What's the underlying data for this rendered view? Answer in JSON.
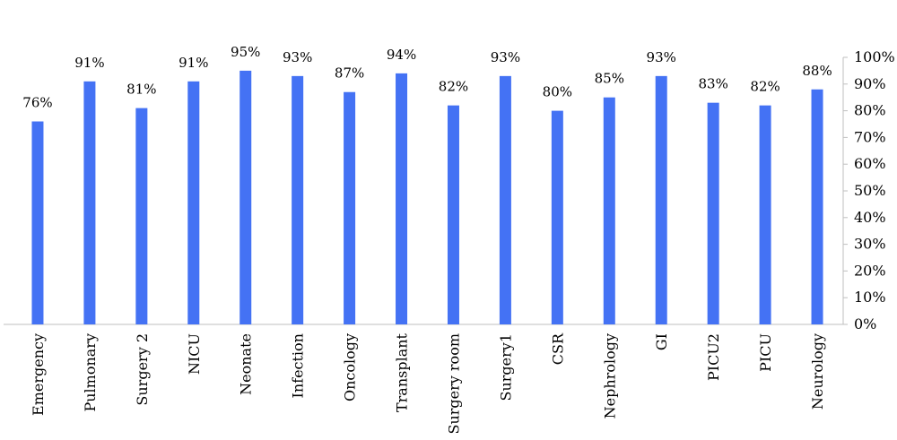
{
  "chart_data": {
    "type": "bar",
    "categories": [
      "Emergency",
      "Pulmonary",
      "Surgery 2",
      "NICU",
      "Neonate",
      "Infection",
      "Oncology",
      "Transplant",
      "Surgery room",
      "Surgery1",
      "CSR",
      "Nephrology",
      "GI",
      "PICU2",
      "PICU",
      "Neurology"
    ],
    "values": [
      76,
      91,
      81,
      91,
      95,
      93,
      87,
      94,
      82,
      93,
      80,
      85,
      93,
      83,
      82,
      88
    ],
    "data_labels": [
      "76%",
      "91%",
      "81%",
      "91%",
      "95%",
      "93%",
      "87%",
      "94%",
      "82%",
      "93%",
      "80%",
      "85%",
      "93%",
      "83%",
      "82%",
      "88%"
    ],
    "y_ticks": [
      "0%",
      "10%",
      "20%",
      "30%",
      "40%",
      "50%",
      "60%",
      "70%",
      "80%",
      "90%",
      "100%"
    ],
    "ylim": [
      0,
      100
    ],
    "y_axis_position": "right",
    "grid": false,
    "legend": "none",
    "bar_color": "#4472f4",
    "axis_color": "#bfbfbf"
  }
}
